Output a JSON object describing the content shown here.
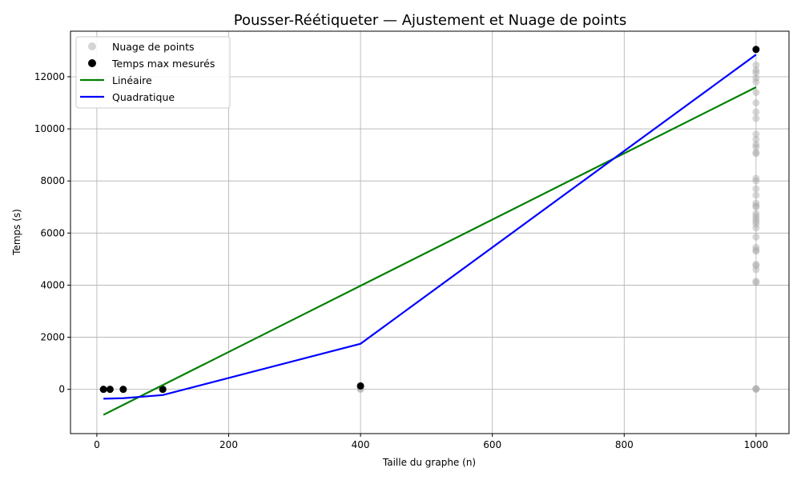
{
  "chart_data": {
    "type": "scatter",
    "title": "Pousser-Réétiqueter — Ajustement et Nuage de points",
    "xlabel": "Taille du graphe (n)",
    "ylabel": "Temps (s)",
    "xlim": [
      -40,
      1050
    ],
    "ylim": [
      -1700,
      13750
    ],
    "x_ticks": [
      0,
      200,
      400,
      600,
      800,
      1000
    ],
    "y_ticks": [
      0,
      2000,
      4000,
      6000,
      8000,
      10000,
      12000
    ],
    "grid": true,
    "legend_position": "top-left",
    "legend": [
      "Nuage de points",
      "Temps max mesurés",
      "Linéaire",
      "Quadratique"
    ],
    "series": [
      {
        "name": "Nuage de points",
        "kind": "scatter",
        "color": "#a9a9a9",
        "points": [
          [
            10,
            0
          ],
          [
            20,
            0
          ],
          [
            40,
            0
          ],
          [
            100,
            0
          ],
          [
            100,
            10
          ],
          [
            400,
            0
          ],
          [
            400,
            20
          ],
          [
            400,
            100
          ],
          [
            1000,
            0
          ],
          [
            1000,
            15
          ],
          [
            1000,
            30
          ],
          [
            1000,
            4100
          ],
          [
            1000,
            4150
          ],
          [
            1000,
            4600
          ],
          [
            1000,
            4750
          ],
          [
            1000,
            4800
          ],
          [
            1000,
            5300
          ],
          [
            1000,
            5350
          ],
          [
            1000,
            5450
          ],
          [
            1000,
            5850
          ],
          [
            1000,
            6200
          ],
          [
            1000,
            6350
          ],
          [
            1000,
            6450
          ],
          [
            1000,
            6550
          ],
          [
            1000,
            6650
          ],
          [
            1000,
            6750
          ],
          [
            1000,
            7000
          ],
          [
            1000,
            7050
          ],
          [
            1000,
            7150
          ],
          [
            1000,
            7450
          ],
          [
            1000,
            7700
          ],
          [
            1000,
            8000
          ],
          [
            1000,
            8100
          ],
          [
            1000,
            9050
          ],
          [
            1000,
            9100
          ],
          [
            1000,
            9300
          ],
          [
            1000,
            9400
          ],
          [
            1000,
            9600
          ],
          [
            1000,
            9800
          ],
          [
            1000,
            10400
          ],
          [
            1000,
            10650
          ],
          [
            1000,
            11000
          ],
          [
            1000,
            11400
          ],
          [
            1000,
            11800
          ],
          [
            1000,
            11950
          ],
          [
            1000,
            12150
          ],
          [
            1000,
            12250
          ],
          [
            1000,
            12450
          ]
        ]
      },
      {
        "name": "Temps max mesurés",
        "kind": "scatter",
        "color": "#000000",
        "points": [
          [
            10,
            0
          ],
          [
            20,
            0
          ],
          [
            40,
            0
          ],
          [
            100,
            0
          ],
          [
            400,
            130
          ],
          [
            1000,
            13050
          ]
        ]
      },
      {
        "name": "Linéaire",
        "kind": "line",
        "color": "#008000",
        "points": [
          [
            10,
            -980
          ],
          [
            1000,
            11600
          ]
        ]
      },
      {
        "name": "Quadratique",
        "kind": "line",
        "color": "#0000ff",
        "points": [
          [
            10,
            -360
          ],
          [
            40,
            -340
          ],
          [
            100,
            -220
          ],
          [
            400,
            1750
          ],
          [
            1000,
            12850
          ]
        ]
      }
    ]
  }
}
